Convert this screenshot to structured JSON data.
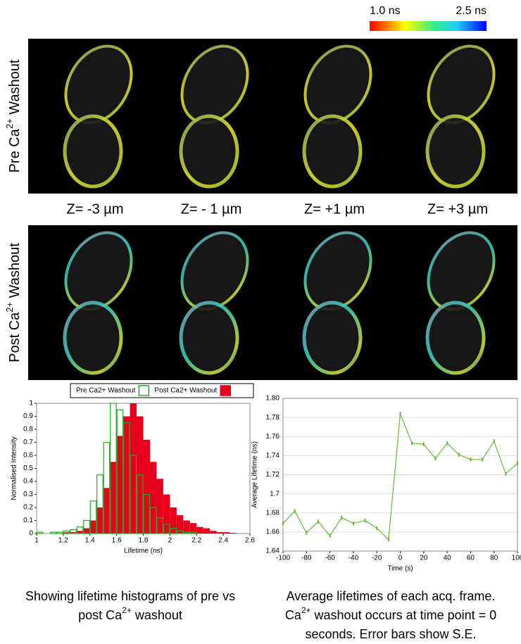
{
  "colorbar": {
    "min_label": "1.0 ns",
    "max_label": "2.5 ns"
  },
  "row_labels": [
    [
      "Pre Ca",
      "2+",
      " Washout"
    ],
    [
      "Post Ca",
      "2+",
      " Washout"
    ]
  ],
  "z_labels": [
    "Z= -3 µm",
    "Z= - 1 µm",
    "Z= +1 µm",
    "Z= +3 µm"
  ],
  "captions": [
    [
      "Showing lifetime histograms of pre vs",
      "post Ca",
      "2+",
      " washout"
    ],
    [
      "Average lifetimes of each acq. frame.",
      "Ca",
      "2+",
      " washout occurs at time point = 0",
      "seconds. Error bars show S.E."
    ]
  ],
  "chart_data": [
    {
      "type": "histogram",
      "xlabel": "Lifetime (ns)",
      "ylabel": "Normalised Intensity",
      "bins": [
        1,
        1.05,
        1.1,
        1.15,
        1.2,
        1.25,
        1.3,
        1.35,
        1.4,
        1.45,
        1.5,
        1.55,
        1.6,
        1.65,
        1.7,
        1.75,
        1.8,
        1.85,
        1.9,
        1.95,
        2,
        2.05,
        2.1,
        2.15,
        2.2,
        2.25,
        2.3,
        2.35,
        2.4,
        2.45,
        2.5
      ],
      "series": [
        {
          "name": "Post Ca2+ Washout",
          "color": "#e8001c",
          "values": [
            0,
            0,
            0,
            0,
            0.01,
            0.01,
            0.02,
            0.04,
            0.1,
            0.2,
            0.35,
            0.55,
            0.75,
            0.9,
            1,
            0.9,
            0.72,
            0.55,
            0.42,
            0.3,
            0.2,
            0.14,
            0.1,
            0.08,
            0.05,
            0.04,
            0.02,
            0.01,
            0.01,
            0.005
          ]
        },
        {
          "name": "Pre Ca2+ Washout",
          "color": "#22aa22",
          "values": [
            0.01,
            0,
            0.01,
            0.01,
            0.02,
            0.03,
            0.05,
            0.1,
            0.25,
            0.45,
            0.7,
            1,
            0.95,
            0.85,
            0.6,
            0.45,
            0.3,
            0.2,
            0.12,
            0.07,
            0.04,
            0.02,
            0.01,
            0.01,
            0,
            0,
            0,
            0,
            0,
            0
          ]
        }
      ],
      "xlim": [
        1,
        2.6
      ],
      "xticks": [
        1,
        1.2,
        1.4,
        1.6,
        1.8,
        2,
        2.2,
        2.4,
        2.6
      ],
      "ylim": [
        0,
        1
      ],
      "yticks": [
        0,
        0.1,
        0.2,
        0.3,
        0.4,
        0.5,
        0.6,
        0.7,
        0.8,
        0.9,
        1
      ]
    },
    {
      "type": "line",
      "xlabel": "Time (s)",
      "ylabel": "Average Lifetime (ns)",
      "color": "#66bb33",
      "x": [
        -100,
        -90,
        -80,
        -70,
        -60,
        -50,
        -40,
        -30,
        -20,
        -10,
        0,
        10,
        20,
        30,
        40,
        50,
        60,
        70,
        80,
        90,
        100
      ],
      "values": [
        1.669,
        1.682,
        1.659,
        1.671,
        1.656,
        1.675,
        1.669,
        1.672,
        1.664,
        1.652,
        1.784,
        1.753,
        1.752,
        1.737,
        1.753,
        1.741,
        1.736,
        1.736,
        1.755,
        1.721,
        1.732
      ],
      "errors": [
        0.002,
        0.002,
        0.002,
        0.002,
        0.002,
        0.002,
        0.002,
        0.002,
        0.002,
        0.002,
        0.002,
        0.002,
        0.002,
        0.002,
        0.002,
        0.002,
        0.002,
        0.002,
        0.002,
        0.002,
        0.002
      ],
      "xlim": [
        -100,
        100
      ],
      "xticks": [
        -100,
        -80,
        -60,
        -40,
        -20,
        0,
        20,
        40,
        60,
        80,
        100
      ],
      "ylim": [
        1.64,
        1.8
      ],
      "yticks": [
        1.64,
        1.66,
        1.68,
        1.7,
        1.72,
        1.74,
        1.76,
        1.78,
        {
          "value": 1.8,
          "label": "1.80"
        }
      ],
      "grid": true
    }
  ]
}
